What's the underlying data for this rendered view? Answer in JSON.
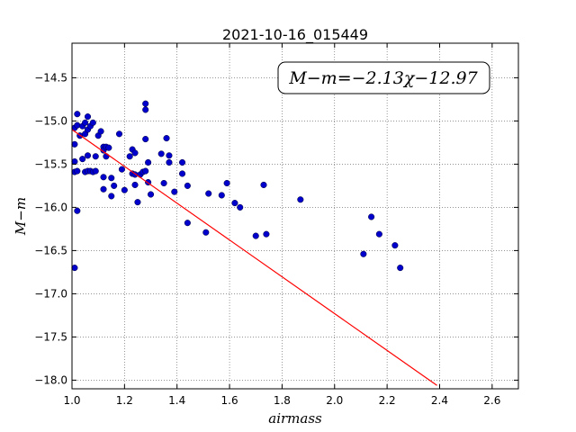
{
  "chart_data": {
    "type": "scatter",
    "title": "2021-10-16_015449",
    "xlabel": "airmass",
    "ylabel": "M−m",
    "xlim": [
      1.0,
      2.7
    ],
    "ylim": [
      -18.1,
      -14.1
    ],
    "grid": true,
    "x_ticks": [
      "1.0",
      "1.2",
      "1.4",
      "1.6",
      "1.8",
      "2.0",
      "2.2",
      "2.4",
      "2.6"
    ],
    "y_ticks": [
      "−14.5",
      "−15.0",
      "−15.5",
      "−16.0",
      "−16.5",
      "−17.0",
      "−17.5",
      "−18.0"
    ],
    "annotation": "M−m=−2.13χ−12.97",
    "point_color": "#0000cc",
    "fit_color": "#ff0000",
    "fit": {
      "slope": -2.13,
      "intercept": -12.97,
      "x_range": [
        1.0,
        2.39
      ]
    },
    "points": [
      [
        1.01,
        -15.08
      ],
      [
        1.01,
        -15.27
      ],
      [
        1.01,
        -15.47
      ],
      [
        1.01,
        -15.59
      ],
      [
        1.01,
        -16.7
      ],
      [
        1.02,
        -14.92
      ],
      [
        1.02,
        -15.05
      ],
      [
        1.02,
        -15.58
      ],
      [
        1.02,
        -16.04
      ],
      [
        1.03,
        -15.17
      ],
      [
        1.04,
        -15.06
      ],
      [
        1.04,
        -15.44
      ],
      [
        1.05,
        -15.02
      ],
      [
        1.05,
        -15.15
      ],
      [
        1.05,
        -15.59
      ],
      [
        1.06,
        -14.95
      ],
      [
        1.06,
        -15.1
      ],
      [
        1.06,
        -15.4
      ],
      [
        1.06,
        -15.58
      ],
      [
        1.07,
        -15.06
      ],
      [
        1.07,
        -15.58
      ],
      [
        1.08,
        -15.02
      ],
      [
        1.08,
        -15.59
      ],
      [
        1.09,
        -15.41
      ],
      [
        1.09,
        -15.58
      ],
      [
        1.1,
        -15.17
      ],
      [
        1.11,
        -15.12
      ],
      [
        1.12,
        -15.3
      ],
      [
        1.12,
        -15.34
      ],
      [
        1.12,
        -15.65
      ],
      [
        1.12,
        -15.79
      ],
      [
        1.13,
        -15.3
      ],
      [
        1.13,
        -15.41
      ],
      [
        1.14,
        -15.31
      ],
      [
        1.15,
        -15.66
      ],
      [
        1.15,
        -15.87
      ],
      [
        1.16,
        -15.75
      ],
      [
        1.18,
        -15.15
      ],
      [
        1.19,
        -15.56
      ],
      [
        1.2,
        -15.8
      ],
      [
        1.22,
        -15.41
      ],
      [
        1.23,
        -15.33
      ],
      [
        1.23,
        -15.61
      ],
      [
        1.24,
        -15.37
      ],
      [
        1.24,
        -15.62
      ],
      [
        1.24,
        -15.74
      ],
      [
        1.25,
        -15.94
      ],
      [
        1.26,
        -15.62
      ],
      [
        1.27,
        -15.59
      ],
      [
        1.28,
        -14.8
      ],
      [
        1.28,
        -14.87
      ],
      [
        1.28,
        -15.21
      ],
      [
        1.28,
        -15.58
      ],
      [
        1.29,
        -15.48
      ],
      [
        1.29,
        -15.71
      ],
      [
        1.3,
        -15.85
      ],
      [
        1.34,
        -15.38
      ],
      [
        1.35,
        -15.72
      ],
      [
        1.36,
        -15.2
      ],
      [
        1.37,
        -15.4
      ],
      [
        1.37,
        -15.48
      ],
      [
        1.39,
        -15.82
      ],
      [
        1.42,
        -15.48
      ],
      [
        1.42,
        -15.61
      ],
      [
        1.44,
        -15.75
      ],
      [
        1.44,
        -16.18
      ],
      [
        1.51,
        -16.29
      ],
      [
        1.52,
        -15.84
      ],
      [
        1.57,
        -15.86
      ],
      [
        1.59,
        -15.72
      ],
      [
        1.62,
        -15.95
      ],
      [
        1.64,
        -16.0
      ],
      [
        1.7,
        -16.33
      ],
      [
        1.73,
        -15.74
      ],
      [
        1.74,
        -16.31
      ],
      [
        1.87,
        -15.91
      ],
      [
        2.11,
        -16.54
      ],
      [
        2.14,
        -16.11
      ],
      [
        2.17,
        -16.31
      ],
      [
        2.23,
        -16.44
      ],
      [
        2.25,
        -16.7
      ]
    ]
  }
}
